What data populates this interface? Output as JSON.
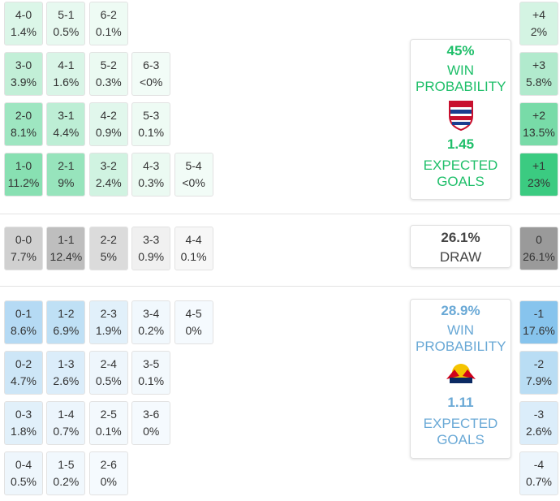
{
  "home": {
    "color": "#1fc46f",
    "text_color": "#1fbf6a",
    "rows": [
      [
        {
          "score": "4-0",
          "prob": "1.4%"
        },
        {
          "score": "5-1",
          "prob": "0.5%"
        },
        {
          "score": "6-2",
          "prob": "0.1%"
        }
      ],
      [
        {
          "score": "3-0",
          "prob": "3.9%"
        },
        {
          "score": "4-1",
          "prob": "1.6%"
        },
        {
          "score": "5-2",
          "prob": "0.3%"
        },
        {
          "score": "6-3",
          "prob": "<0%"
        }
      ],
      [
        {
          "score": "2-0",
          "prob": "8.1%"
        },
        {
          "score": "3-1",
          "prob": "4.4%"
        },
        {
          "score": "4-2",
          "prob": "0.9%"
        },
        {
          "score": "5-3",
          "prob": "0.1%"
        }
      ],
      [
        {
          "score": "1-0",
          "prob": "11.2%"
        },
        {
          "score": "2-1",
          "prob": "9%"
        },
        {
          "score": "3-2",
          "prob": "2.4%"
        },
        {
          "score": "4-3",
          "prob": "0.3%"
        },
        {
          "score": "5-4",
          "prob": "<0%"
        }
      ]
    ],
    "margins": [
      {
        "label": "+4",
        "prob": "2%"
      },
      {
        "label": "+3",
        "prob": "5.8%"
      },
      {
        "label": "+2",
        "prob": "13.5%"
      },
      {
        "label": "+1",
        "prob": "23%"
      }
    ],
    "summary": {
      "win_pct": "45%",
      "win_label": "WIN PROBABILITY",
      "xg": "1.45",
      "xg_label": "EXPECTED GOALS"
    }
  },
  "draw": {
    "color": "#8e8e8e",
    "text_color": "#444444",
    "rows": [
      [
        {
          "score": "0-0",
          "prob": "7.7%"
        },
        {
          "score": "1-1",
          "prob": "12.4%"
        },
        {
          "score": "2-2",
          "prob": "5%"
        },
        {
          "score": "3-3",
          "prob": "0.9%"
        },
        {
          "score": "4-4",
          "prob": "0.1%"
        }
      ]
    ],
    "margins": [
      {
        "label": "0",
        "prob": "26.1%"
      }
    ],
    "summary": {
      "pct": "26.1%",
      "label": "DRAW"
    }
  },
  "away": {
    "color": "#5aaee6",
    "text_color": "#6aa9d6",
    "rows": [
      [
        {
          "score": "0-1",
          "prob": "8.6%"
        },
        {
          "score": "1-2",
          "prob": "6.9%"
        },
        {
          "score": "2-3",
          "prob": "1.9%"
        },
        {
          "score": "3-4",
          "prob": "0.2%"
        },
        {
          "score": "4-5",
          "prob": "0%"
        }
      ],
      [
        {
          "score": "0-2",
          "prob": "4.7%"
        },
        {
          "score": "1-3",
          "prob": "2.6%"
        },
        {
          "score": "2-4",
          "prob": "0.5%"
        },
        {
          "score": "3-5",
          "prob": "0.1%"
        }
      ],
      [
        {
          "score": "0-3",
          "prob": "1.8%"
        },
        {
          "score": "1-4",
          "prob": "0.7%"
        },
        {
          "score": "2-5",
          "prob": "0.1%"
        },
        {
          "score": "3-6",
          "prob": "0%"
        }
      ],
      [
        {
          "score": "0-4",
          "prob": "0.5%"
        },
        {
          "score": "1-5",
          "prob": "0.2%"
        },
        {
          "score": "2-6",
          "prob": "0%"
        }
      ]
    ],
    "margins": [
      {
        "label": "-1",
        "prob": "17.6%"
      },
      {
        "label": "-2",
        "prob": "7.9%"
      },
      {
        "label": "-3",
        "prob": "2.6%"
      },
      {
        "label": "-4",
        "prob": "0.7%"
      }
    ],
    "summary": {
      "win_pct": "28.9%",
      "win_label": "WIN PROBABILITY",
      "xg": "1.11",
      "xg_label": "EXPECTED GOALS"
    }
  }
}
